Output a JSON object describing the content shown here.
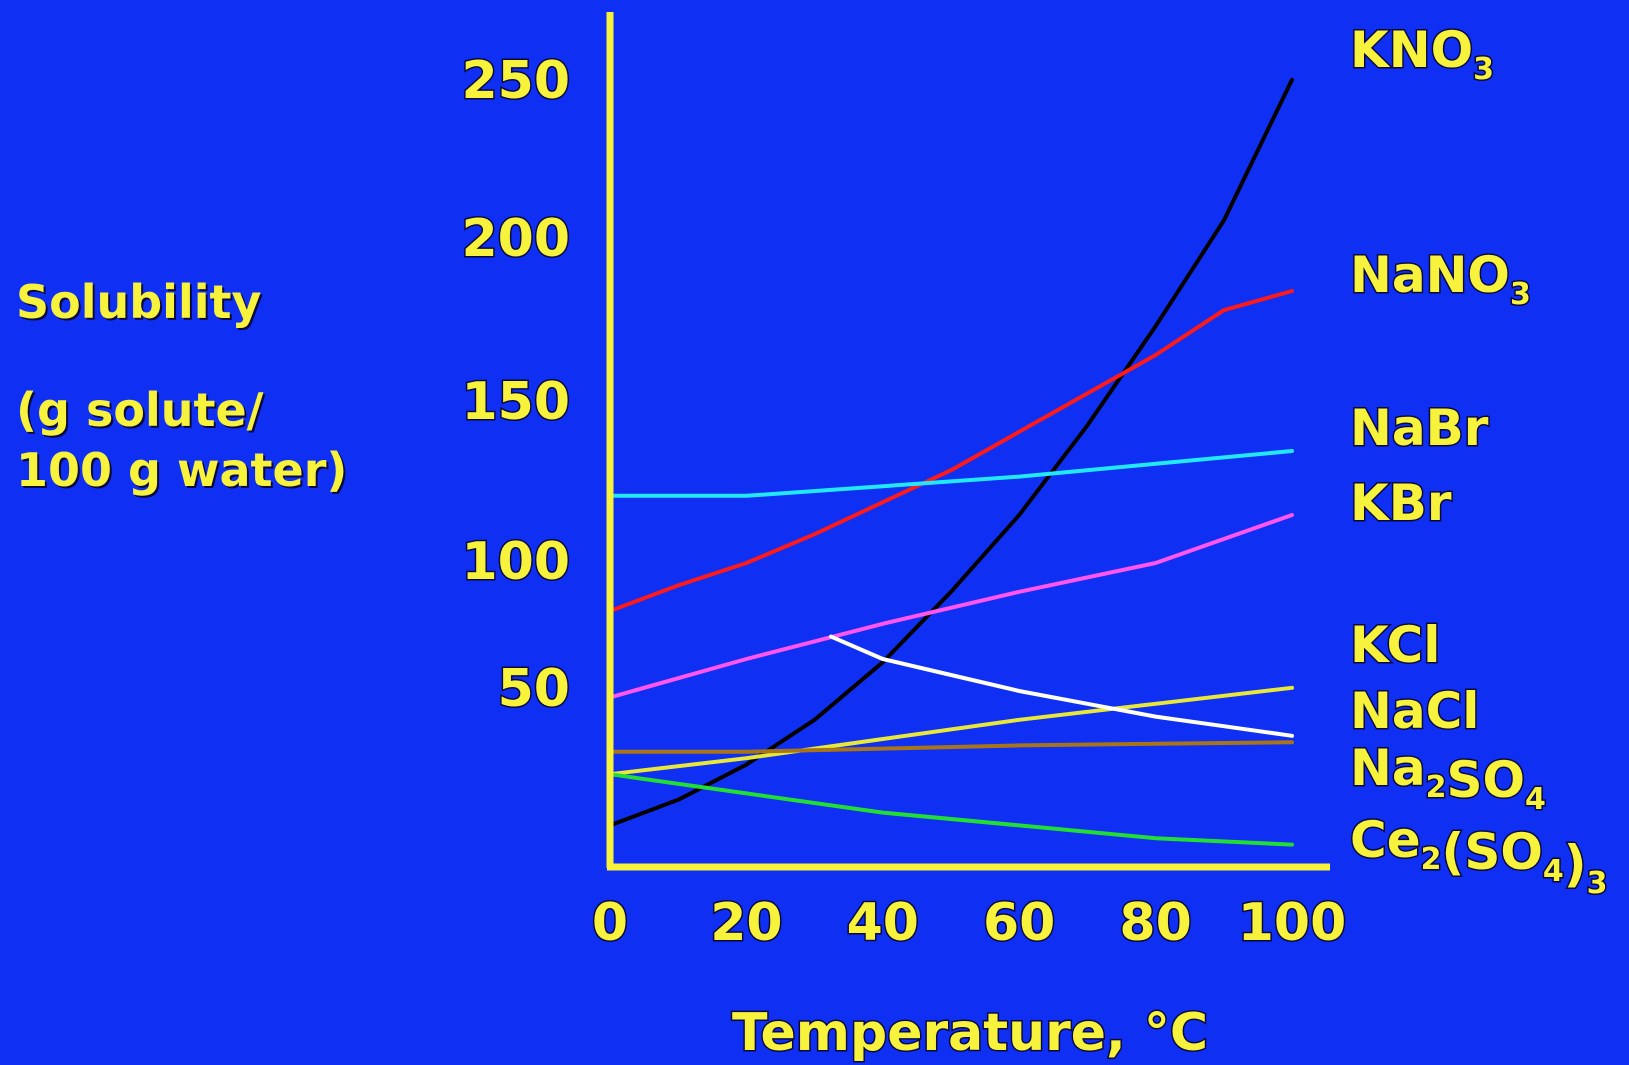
{
  "chart_data": {
    "type": "line",
    "title": "",
    "ylabel_lines": [
      "Solubility",
      "(g solute/",
      "100 g water)"
    ],
    "xlabel": "Temperature, °C",
    "xlim": [
      0,
      100
    ],
    "ylim": [
      0,
      260
    ],
    "x_ticks": [
      0,
      20,
      40,
      60,
      80,
      100
    ],
    "y_ticks": [
      50,
      100,
      150,
      200,
      250
    ],
    "grid": false,
    "legend": "series labels at right end of lines",
    "series": [
      {
        "id": "kno3",
        "name": "KNO3",
        "label_parts": [
          {
            "t": "KNO"
          },
          {
            "t": "3",
            "sub": true
          }
        ],
        "color": "#000000",
        "points": [
          [
            0,
            13
          ],
          [
            10,
            21
          ],
          [
            20,
            32
          ],
          [
            30,
            46
          ],
          [
            40,
            64
          ],
          [
            50,
            86
          ],
          [
            60,
            110
          ],
          [
            70,
            138
          ],
          [
            80,
            169
          ],
          [
            90,
            202
          ],
          [
            100,
            246
          ]
        ]
      },
      {
        "id": "nano3",
        "name": "NaNO3",
        "label_parts": [
          {
            "t": "NaNO"
          },
          {
            "t": "3",
            "sub": true
          }
        ],
        "color": "#ff1a1a",
        "points": [
          [
            0,
            80
          ],
          [
            10,
            88
          ],
          [
            20,
            95
          ],
          [
            30,
            104
          ],
          [
            40,
            114
          ],
          [
            50,
            124
          ],
          [
            60,
            136
          ],
          [
            70,
            148
          ],
          [
            80,
            160
          ],
          [
            90,
            174
          ],
          [
            100,
            180
          ]
        ]
      },
      {
        "id": "nabr",
        "name": "NaBr",
        "label_parts": [
          {
            "t": "NaBr"
          }
        ],
        "color": "#22e8ff",
        "points": [
          [
            0,
            116
          ],
          [
            20,
            116
          ],
          [
            40,
            119
          ],
          [
            60,
            122
          ],
          [
            80,
            126
          ],
          [
            100,
            130
          ]
        ]
      },
      {
        "id": "kbr",
        "name": "KBr",
        "label_parts": [
          {
            "t": "KBr"
          }
        ],
        "color": "#ff55ee",
        "points": [
          [
            0,
            53
          ],
          [
            20,
            65
          ],
          [
            40,
            76
          ],
          [
            60,
            86
          ],
          [
            80,
            95
          ],
          [
            100,
            110
          ]
        ]
      },
      {
        "id": "kcl",
        "name": "KCl",
        "label_parts": [
          {
            "t": "KCl"
          }
        ],
        "color": "#e8e83a",
        "points": [
          [
            0,
            29
          ],
          [
            20,
            34
          ],
          [
            40,
            40
          ],
          [
            60,
            46
          ],
          [
            80,
            51
          ],
          [
            100,
            56
          ]
        ]
      },
      {
        "id": "nacl",
        "name": "NaCl",
        "label_parts": [
          {
            "t": "NaCl"
          }
        ],
        "color": "#a87418",
        "points": [
          [
            0,
            36
          ],
          [
            20,
            36
          ],
          [
            40,
            37
          ],
          [
            60,
            38
          ],
          [
            80,
            38.5
          ],
          [
            100,
            39
          ]
        ]
      },
      {
        "id": "na2so4",
        "name": "Na2SO4",
        "label_parts": [
          {
            "t": "Na"
          },
          {
            "t": "2",
            "sub": true
          },
          {
            "t": "SO"
          },
          {
            "t": "4",
            "sub": true
          }
        ],
        "color": "#ffffff",
        "points": [
          [
            32.4,
            72
          ],
          [
            40,
            65
          ],
          [
            50,
            60
          ],
          [
            60,
            55
          ],
          [
            70,
            51
          ],
          [
            80,
            47
          ],
          [
            90,
            44
          ],
          [
            100,
            41
          ]
        ]
      },
      {
        "id": "ce2so43",
        "name": "Ce2(SO4)3",
        "label_parts": [
          {
            "t": "Ce"
          },
          {
            "t": "2",
            "sub": true
          },
          {
            "t": "(SO"
          },
          {
            "t": "4",
            "sub": true
          },
          {
            "t": ")"
          },
          {
            "t": "3",
            "sub": true
          }
        ],
        "color": "#22dd33",
        "points": [
          [
            0,
            29
          ],
          [
            20,
            23
          ],
          [
            40,
            17
          ],
          [
            60,
            13
          ],
          [
            80,
            9
          ],
          [
            100,
            7
          ]
        ]
      }
    ]
  }
}
